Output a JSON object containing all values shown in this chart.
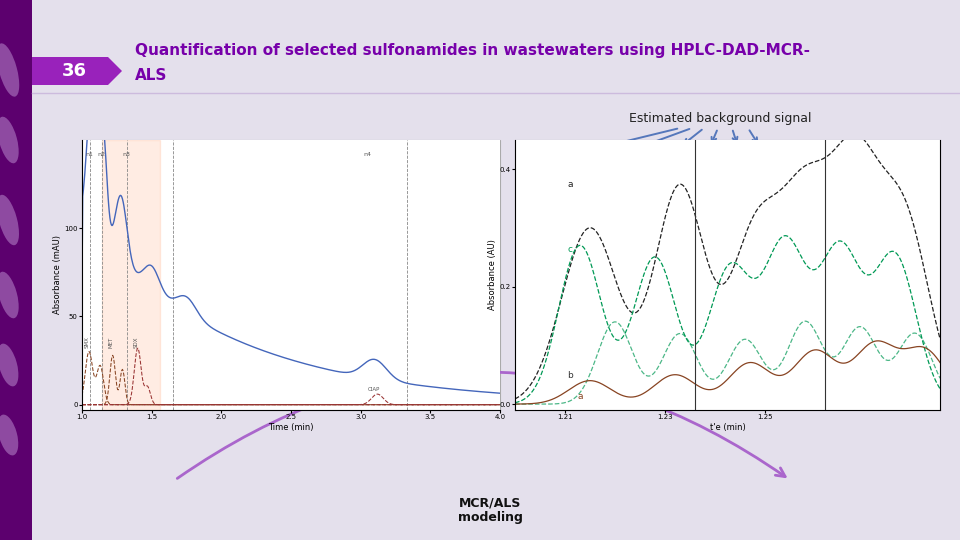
{
  "slide_bg": "#e4e0ec",
  "title_text_line1": "Quantification of selected sulfonamides in wastewaters using HPLC-DAD-MCR-",
  "title_text_line2": "ALS",
  "title_color": "#7700aa",
  "number_text": "36",
  "arrow_color": "#aa66cc",
  "label_bg_signal": "Estimated background signal",
  "label_mcr": "MCR/ALS\nmodeling",
  "blue_arrow_color": "#5577bb"
}
